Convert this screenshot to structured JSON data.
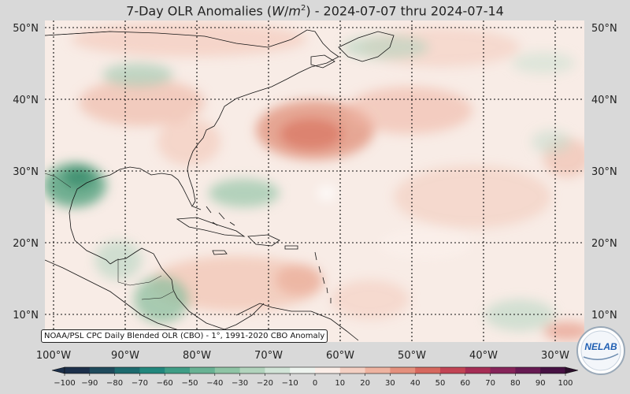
{
  "title": {
    "prefix": "7-Day OLR Anomalies (",
    "var_w": "W",
    "var_sep": "/",
    "var_m": "m",
    "exponent": "2",
    "suffix": ") - 2024-07-07 thru 2024-07-14"
  },
  "lat_labels": [
    "50°N",
    "40°N",
    "30°N",
    "20°N",
    "10°N"
  ],
  "lon_labels": [
    "100°W",
    "90°W",
    "80°W",
    "70°W",
    "60°W",
    "50°W",
    "40°W",
    "30°W"
  ],
  "source_note": "NOAA/PSL CPC Daily Blended OLR (CBO) - 1°, 1991-2020 CBO Anomaly",
  "colorbar": {
    "ticks": [
      "−100",
      "−90",
      "−80",
      "−70",
      "−60",
      "−50",
      "−40",
      "−30",
      "−20",
      "−10",
      "0",
      "10",
      "20",
      "30",
      "40",
      "50",
      "60",
      "70",
      "80",
      "90",
      "100"
    ],
    "low_color": "#1c2f4a",
    "mid_color": "#faf7f2",
    "high_color": "#2a0e2a"
  },
  "logo": {
    "text_a": "NE",
    "text_b": "LAB",
    "accent": "#1f5fb3"
  }
}
